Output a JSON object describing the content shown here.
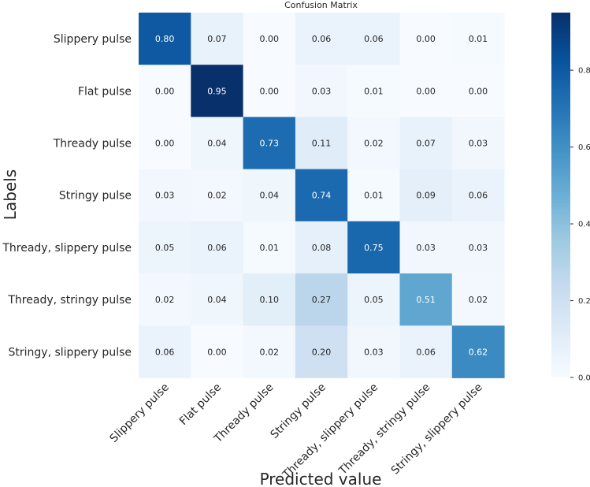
{
  "chart_data": {
    "type": "heatmap",
    "title": "Confusion Matrix",
    "xlabel": "Predicted value",
    "ylabel": "Labels",
    "rows": [
      "Slippery pulse",
      "Flat pulse",
      "Thready pulse",
      "Stringy pulse",
      "Thready, slippery pulse",
      "Thready, stringy pulse",
      "Stringy, slippery pulse"
    ],
    "columns": [
      "Slippery pulse",
      "Flat pulse",
      "Thready pulse",
      "Stringy pulse",
      "Thready, slippery pulse",
      "Thready, stringy pulse",
      "Stringy, slippery pulse"
    ],
    "values": [
      [
        0.8,
        0.07,
        0.0,
        0.06,
        0.06,
        0.0,
        0.01
      ],
      [
        0.0,
        0.95,
        0.0,
        0.03,
        0.01,
        0.0,
        0.0
      ],
      [
        0.0,
        0.04,
        0.73,
        0.11,
        0.02,
        0.07,
        0.03
      ],
      [
        0.03,
        0.02,
        0.04,
        0.74,
        0.01,
        0.09,
        0.06
      ],
      [
        0.05,
        0.06,
        0.01,
        0.08,
        0.75,
        0.03,
        0.03
      ],
      [
        0.02,
        0.04,
        0.1,
        0.27,
        0.05,
        0.51,
        0.02
      ],
      [
        0.06,
        0.0,
        0.02,
        0.2,
        0.03,
        0.06,
        0.62
      ]
    ],
    "cell_labels": [
      [
        "0.80",
        "0.07",
        "0.00",
        "0.06",
        "0.06",
        "0.00",
        "0.01"
      ],
      [
        "0.00",
        "0.95",
        "0.00",
        "0.03",
        "0.01",
        "0.00",
        "0.00"
      ],
      [
        "0.00",
        "0.04",
        "0.73",
        "0.11",
        "0.02",
        "0.07",
        "0.03"
      ],
      [
        "0.03",
        "0.02",
        "0.04",
        "0.74",
        "0.01",
        "0.09",
        "0.06"
      ],
      [
        "0.05",
        "0.06",
        "0.01",
        "0.08",
        "0.75",
        "0.03",
        "0.03"
      ],
      [
        "0.02",
        "0.04",
        "0.10",
        "0.27",
        "0.05",
        "0.51",
        "0.02"
      ],
      [
        "0.06",
        "0.00",
        "0.02",
        "0.20",
        "0.03",
        "0.06",
        "0.62"
      ]
    ],
    "colorbar": {
      "range": [
        0,
        0.95
      ],
      "ticks": [
        0.0,
        0.2,
        0.4,
        0.6,
        0.8
      ],
      "tick_labels": [
        "0.0",
        "0.2",
        "0.4",
        "0.6",
        "0.8"
      ],
      "colormap": "Blues"
    }
  }
}
